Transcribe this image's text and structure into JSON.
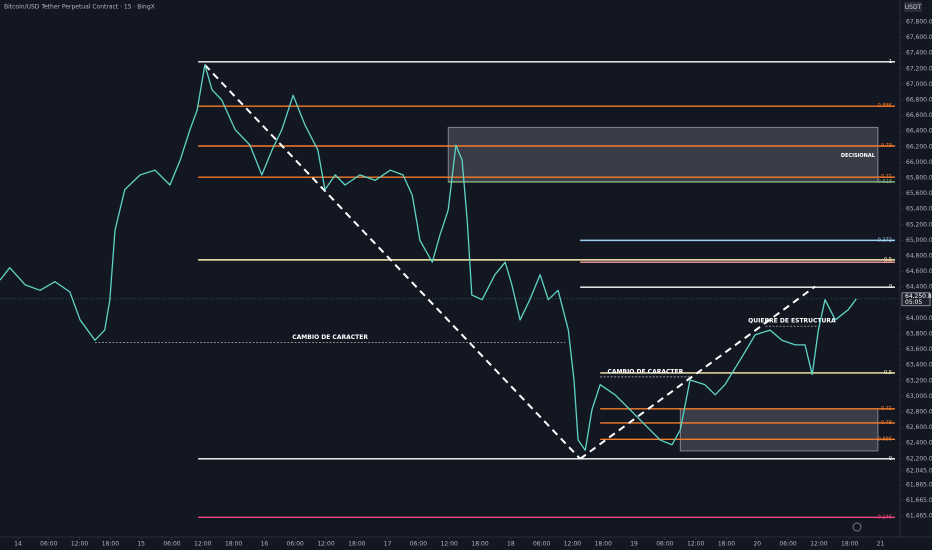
{
  "chart_data": {
    "type": "line",
    "title": "Bitcoin/USD Tether Perpetual Contract · 15 · BingX",
    "currency": "USDT",
    "color": "#5fd3c5",
    "x": [
      -3.5,
      -1.6,
      1.4,
      4.3,
      7.2,
      10.1,
      12.1,
      15.0,
      16.9,
      17.9,
      18.9,
      20.8,
      23.8,
      26.7,
      29.6,
      31.6,
      33.5,
      34.9,
      36.4,
      37.8,
      39.7,
      42.3,
      45.2,
      47.5,
      49.5,
      51.4,
      53.6,
      55.9,
      58.4,
      59.8,
      61.8,
      63.7,
      66.6,
      69.6,
      72.5,
      75.0,
      76.8,
      78.3,
      80.7,
      82.2,
      83.8,
      85.3,
      86.5,
      87.5,
      88.4,
      90.4,
      92.9,
      94.9,
      96.2,
      97.8,
      99.7,
      101.7,
      103.3,
      105.2,
      107.2,
      108.3,
      109.1,
      110.5,
      111.8,
      113.4,
      116.3,
      119.2,
      122.2,
      125.1,
      127.4,
      129.0,
      130.9,
      133.8,
      135.8,
      137.7,
      140.7,
      143.6,
      146.5,
      148.8,
      151.4,
      153.3,
      154.7,
      155.9,
      157.2,
      159.2,
      161.7,
      163.3
    ],
    "values": [
      64490,
      64650,
      64430,
      64360,
      64470,
      64340,
      63980,
      63720,
      63850,
      64240,
      65130,
      65650,
      65840,
      65900,
      65710,
      66030,
      66420,
      66670,
      67250,
      66930,
      66800,
      66420,
      66220,
      65840,
      66160,
      66420,
      66860,
      66480,
      66160,
      65650,
      65840,
      65710,
      65840,
      65770,
      65900,
      65840,
      65580,
      65000,
      64720,
      65070,
      65390,
      66220,
      66030,
      65260,
      64300,
      64240,
      64560,
      64720,
      64430,
      63980,
      64240,
      64560,
      64240,
      64360,
      63850,
      63210,
      62440,
      62310,
      62830,
      63150,
      63020,
      62830,
      62630,
      62440,
      62380,
      62570,
      63210,
      63150,
      63020,
      63150,
      63470,
      63790,
      63850,
      63720,
      63660,
      63660,
      63280,
      63850,
      64240,
      63980,
      64110,
      64250.8
    ],
    "last_price": {
      "value": 64250.8,
      "label": "64,250.8"
    },
    "countdown": "05:05",
    "xlim": [
      -3.5,
      171.8
    ],
    "ylim": [
      61197,
      68082
    ],
    "xticks": [
      {
        "value": 0,
        "label": "14"
      },
      {
        "value": 6,
        "label": "06:00"
      },
      {
        "value": 12,
        "label": "12:00"
      },
      {
        "value": 18,
        "label": "18:00"
      },
      {
        "value": 24,
        "label": "15"
      },
      {
        "value": 30,
        "label": "06:00"
      },
      {
        "value": 36,
        "label": "12:00"
      },
      {
        "value": 42,
        "label": "18:00"
      },
      {
        "value": 48,
        "label": "16"
      },
      {
        "value": 54,
        "label": "06:00"
      },
      {
        "value": 60,
        "label": "12:00"
      },
      {
        "value": 66,
        "label": "18:00"
      },
      {
        "value": 72,
        "label": "17"
      },
      {
        "value": 78,
        "label": "06:00"
      },
      {
        "value": 84,
        "label": "12:00"
      },
      {
        "value": 90,
        "label": "18:00"
      },
      {
        "value": 96,
        "label": "18"
      },
      {
        "value": 102,
        "label": "06:00"
      },
      {
        "value": 108,
        "label": "12:00"
      },
      {
        "value": 114,
        "label": "18:00"
      },
      {
        "value": 120,
        "label": "19"
      },
      {
        "value": 126,
        "label": "06:00"
      },
      {
        "value": 132,
        "label": "12:00"
      },
      {
        "value": 138,
        "label": "18:00"
      },
      {
        "value": 144,
        "label": "20"
      },
      {
        "value": 150,
        "label": "06:00"
      },
      {
        "value": 156,
        "label": "12:00"
      },
      {
        "value": 162,
        "label": "18:00"
      },
      {
        "value": 168,
        "label": "21"
      }
    ],
    "yticks": [
      {
        "value": 67800,
        "label": "67,800.0"
      },
      {
        "value": 67600,
        "label": "67,600.0"
      },
      {
        "value": 67400,
        "label": "67,400.0"
      },
      {
        "value": 67200,
        "label": "67,200.0"
      },
      {
        "value": 67000,
        "label": "67,000.0"
      },
      {
        "value": 66800,
        "label": "66,800.0"
      },
      {
        "value": 66600,
        "label": "66,600.0"
      },
      {
        "value": 66400,
        "label": "66,400.0"
      },
      {
        "value": 66200,
        "label": "66,200.0"
      },
      {
        "value": 66000,
        "label": "66,000.0"
      },
      {
        "value": 65800,
        "label": "65,800.0"
      },
      {
        "value": 65600,
        "label": "65,600.0"
      },
      {
        "value": 65400,
        "label": "65,400.0"
      },
      {
        "value": 65200,
        "label": "65,200.0"
      },
      {
        "value": 65000,
        "label": "65,000.0"
      },
      {
        "value": 64800,
        "label": "64,800.0"
      },
      {
        "value": 64600,
        "label": "64,600.0"
      },
      {
        "value": 64400,
        "label": "64,400.0"
      },
      {
        "value": 64000,
        "label": "64,000.0"
      },
      {
        "value": 63800,
        "label": "63,800.0"
      },
      {
        "value": 63600,
        "label": "63,600.0"
      },
      {
        "value": 63400,
        "label": "63,400.0"
      },
      {
        "value": 63200,
        "label": "63,200.0"
      },
      {
        "value": 63000,
        "label": "63,000.0"
      },
      {
        "value": 62800,
        "label": "62,800.0"
      },
      {
        "value": 62600,
        "label": "62,600.0"
      },
      {
        "value": 62400,
        "label": "62,400.0"
      },
      {
        "value": 62200,
        "label": "62,200.0"
      },
      {
        "value": 62045,
        "label": "62,045.0"
      },
      {
        "value": 61865,
        "label": "61,865.0"
      },
      {
        "value": 61665,
        "label": "61,665.0"
      },
      {
        "value": 61465,
        "label": "61,465.0"
      }
    ],
    "levels": [
      {
        "label": "1",
        "value": 67290,
        "color": "#ffffff",
        "from": 35.1
      },
      {
        "label": "0.886",
        "value": 66720,
        "color": "#f57c2a",
        "from": 35.1
      },
      {
        "label": "0.79",
        "value": 66210,
        "color": "#f57c2a",
        "from": 35.1
      },
      {
        "label": "0.71",
        "value": 65810,
        "color": "#f57c2a",
        "from": 35.1
      },
      {
        "label": "0.618",
        "value": 65750,
        "color": "#7fae7a",
        "from": 83.8
      },
      {
        "label": "0.272",
        "value": 65000,
        "color": "#9fd3f5",
        "from": 109.5
      },
      {
        "label": "0.5",
        "value": 64750,
        "color": "#fff3b0",
        "from": 35.1
      },
      {
        "label": "0.5",
        "value": 64720,
        "color": "#f7a1a1",
        "from": 109.5
      },
      {
        "label": "0",
        "value": 64400,
        "color": "#ffffff",
        "from": 109.5
      },
      {
        "label": "0.5",
        "value": 63300,
        "color": "#fff3b0",
        "from": 113.4
      },
      {
        "label": "0.71",
        "value": 62840,
        "color": "#f57c2a",
        "from": 113.4
      },
      {
        "label": "0.79",
        "value": 62660,
        "color": "#f57c2a",
        "from": 113.4
      },
      {
        "label": "0.886",
        "value": 62450,
        "color": "#f57c2a",
        "from": 113.4
      },
      {
        "label": "0",
        "value": 62200,
        "color": "#ffffff",
        "from": 35.1
      },
      {
        "label": "-0.146",
        "value": 61450,
        "color": "#f0467a",
        "from": 35.1
      }
    ],
    "zones": [
      {
        "label": "DECISIONAL",
        "x": [
          83.8,
          167.5
        ],
        "y": [
          65750,
          66450
        ]
      },
      {
        "x": [
          129.0,
          167.5
        ],
        "y": [
          62300,
          62840
        ]
      }
    ],
    "annotations": [
      {
        "text": "CAMBIO DE CARACTER",
        "x": [
          15.0,
          106.6
        ],
        "y": 63690
      },
      {
        "text": "CAMBIO DE CARACTER",
        "x": [
          113.4,
          131.0
        ],
        "y": 63250
      },
      {
        "text": "QUIEBRE DE ESTRUCTURA",
        "x": [
          145.6,
          155.9
        ],
        "y": 63900
      }
    ],
    "trendlines": [
      {
        "x": [
          36.4,
          109.5
        ],
        "y": [
          67250,
          62200
        ]
      },
      {
        "x": [
          109.5,
          155.3
        ],
        "y": [
          62200,
          64410
        ]
      }
    ]
  }
}
